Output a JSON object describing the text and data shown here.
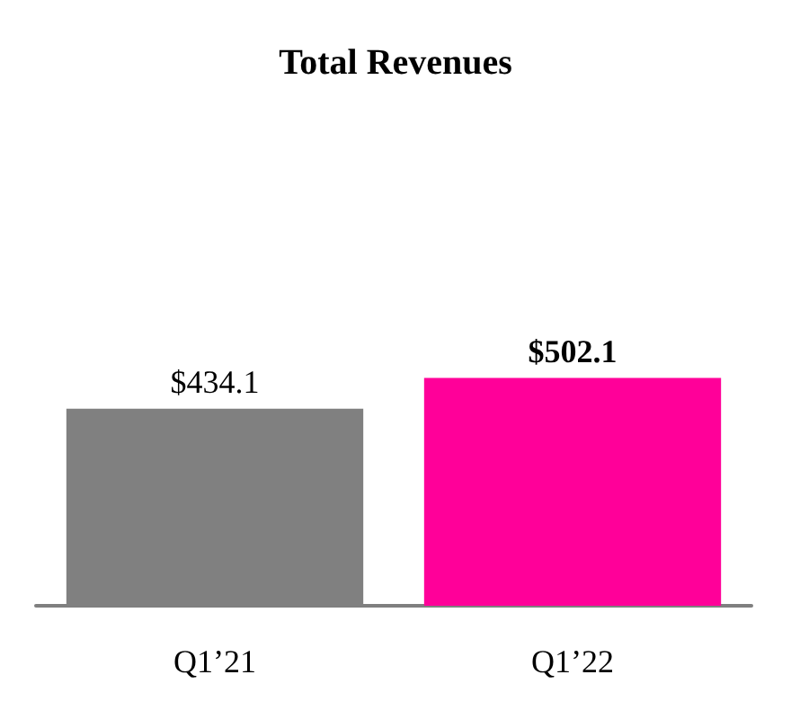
{
  "chart_data": {
    "type": "bar",
    "title": "Total Revenues",
    "categories": [
      "Q1’21",
      "Q1’22"
    ],
    "values": [
      434.1,
      502.1
    ],
    "colors": [
      "#808080",
      "#ff0099"
    ],
    "value_labels": [
      "$434.1",
      "$502.1"
    ],
    "tick_labels": "x"
  }
}
